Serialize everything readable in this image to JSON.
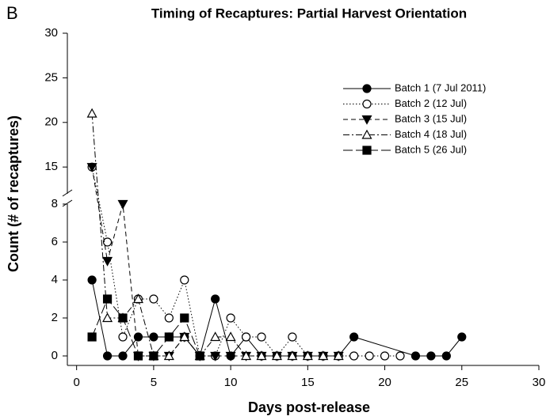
{
  "chart_data": {
    "type": "line",
    "panel_label": "B",
    "title": "Timing of Recaptures:  Partial Harvest Orientation",
    "x_label": "Days post-release",
    "y_label": "Count (# of recaptures)",
    "xlim": [
      -0.6,
      30
    ],
    "xticks": [
      0,
      5,
      10,
      15,
      20,
      25,
      30
    ],
    "ylim": [
      -0.5,
      30
    ],
    "y_break": [
      8,
      12
    ],
    "yticks": [
      0,
      2,
      4,
      6,
      8,
      15,
      20,
      25,
      30
    ],
    "legend_position": "upper right",
    "series": [
      {
        "name": "Batch 1 (7 Jul 2011)",
        "color": "#000000",
        "marker": "filled-circle",
        "linestyle": "solid",
        "x": [
          1,
          2,
          3,
          4,
          5,
          6,
          7,
          8,
          9,
          10,
          11,
          12,
          13,
          14,
          15,
          16,
          17,
          18,
          22,
          23,
          24,
          25
        ],
        "values": [
          4,
          0,
          0,
          1,
          1,
          1,
          1,
          0,
          3,
          0,
          1,
          0,
          0,
          0,
          0,
          0,
          0,
          1,
          0,
          0,
          0,
          1
        ]
      },
      {
        "name": "Batch 2 (12 Jul)",
        "color": "#000000",
        "marker": "open-circle",
        "linestyle": "dotted",
        "x": [
          1,
          2,
          3,
          4,
          5,
          6,
          7,
          8,
          9,
          10,
          11,
          12,
          13,
          14,
          15,
          16,
          17,
          18,
          19,
          20,
          21
        ],
        "values": [
          15,
          6,
          1,
          3,
          3,
          2,
          4,
          0,
          0,
          2,
          1,
          1,
          0,
          1,
          0,
          0,
          0,
          0,
          0,
          0,
          0
        ]
      },
      {
        "name": "Batch 3 (15 Jul)",
        "color": "#000000",
        "marker": "filled-triangle-down",
        "linestyle": "dashed",
        "x": [
          1,
          2,
          3,
          4,
          5,
          6,
          7,
          8,
          9,
          10,
          11,
          12,
          13,
          14,
          15,
          16,
          17
        ],
        "values": [
          15,
          5,
          8,
          0,
          0,
          0,
          1,
          0,
          0,
          0,
          0,
          0,
          0,
          0,
          0,
          0,
          0
        ]
      },
      {
        "name": "Batch 4 (18 Jul)",
        "color": "#000000",
        "marker": "open-triangle-up",
        "linestyle": "dashdot",
        "x": [
          1,
          2,
          3,
          4,
          5,
          6,
          7,
          8,
          9,
          10,
          11,
          12,
          13,
          14,
          15,
          16,
          17
        ],
        "values": [
          21,
          2,
          2,
          3,
          0,
          0,
          1,
          0,
          1,
          1,
          0,
          0,
          0,
          0,
          0,
          0,
          0
        ]
      },
      {
        "name": "Batch 5 (26 Jul)",
        "color": "#000000",
        "marker": "filled-square",
        "linestyle": "longdash",
        "x": [
          1,
          2,
          3,
          4,
          5,
          6,
          7,
          8
        ],
        "values": [
          1,
          3,
          2,
          0,
          0,
          1,
          2,
          0
        ]
      }
    ]
  }
}
